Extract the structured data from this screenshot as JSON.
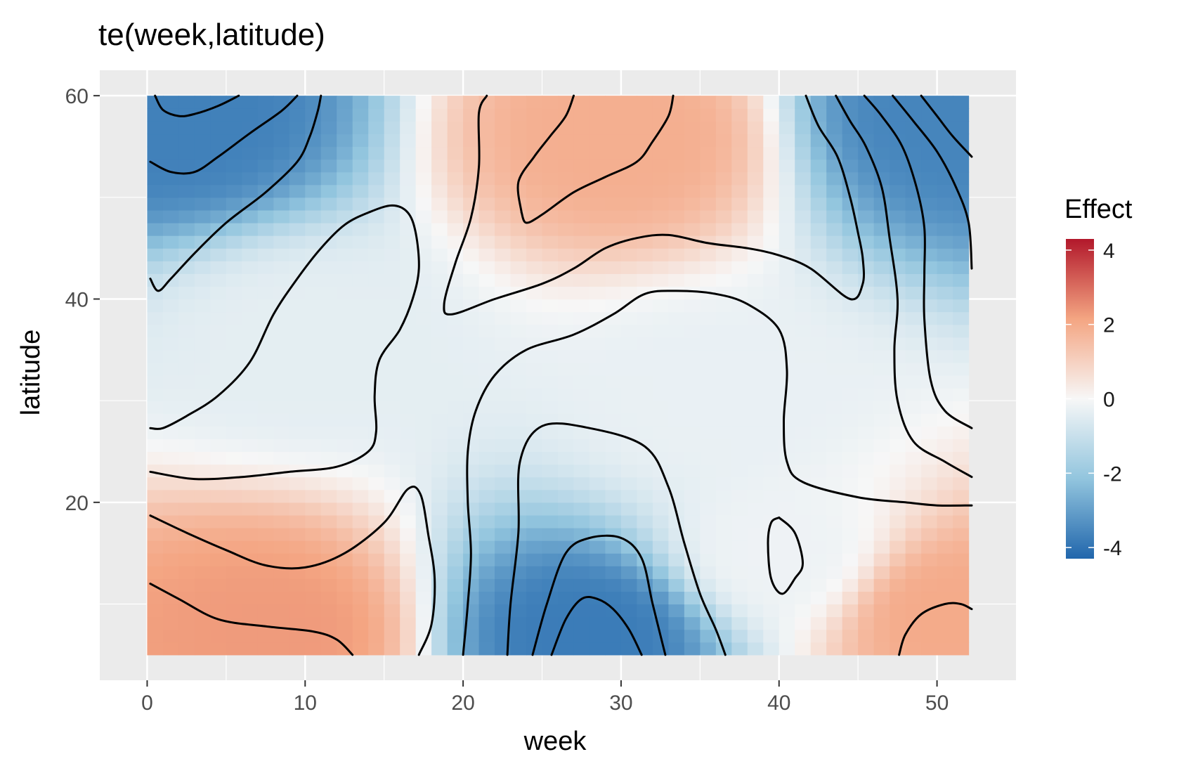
{
  "chart_data": {
    "type": "heatmap",
    "title": "te(week,latitude)",
    "xlabel": "week",
    "ylabel": "latitude",
    "xlim": [
      -3,
      55
    ],
    "ylim": [
      2.5,
      62.5
    ],
    "x_range": [
      0,
      52
    ],
    "y_range": [
      5,
      60
    ],
    "x_ticks": [
      0,
      10,
      20,
      30,
      40,
      50
    ],
    "y_ticks": [
      20,
      40,
      60
    ],
    "grid": true,
    "legend": {
      "title": "Effect",
      "position": "right",
      "limits": [
        -4.3,
        4.3
      ],
      "ticks": [
        4,
        2,
        0,
        -2,
        -4
      ],
      "tick_labels": [
        "4",
        "2",
        "0",
        "-2",
        "-4"
      ]
    },
    "colors": {
      "low": "#2166ac",
      "mid_low": "#92c5de",
      "mid": "#f7f7f7",
      "mid_high": "#f4a582",
      "high": "#b2182b",
      "panel_background": "#ebebeb",
      "gridline": "#ffffff",
      "contour": "#000000"
    },
    "surface_samples": [
      {
        "week": 2,
        "latitude": 58,
        "effect": -3.7
      },
      {
        "week": 51,
        "latitude": 58,
        "effect": -3.6
      },
      {
        "week": 28,
        "latitude": 7,
        "effect": -3.8
      },
      {
        "week": 30,
        "latitude": 56,
        "effect": 1.9
      },
      {
        "week": 8,
        "latitude": 7,
        "effect": 2.3
      },
      {
        "week": 51,
        "latitude": 9,
        "effect": 2.0
      },
      {
        "week": 10,
        "latitude": 36,
        "effect": -0.4
      },
      {
        "week": 36,
        "latitude": 30,
        "effect": -0.3
      },
      {
        "week": 40,
        "latitude": 15,
        "effect": -0.2
      }
    ],
    "contours": [
      {
        "points": [
          [
            0.5,
            60
          ],
          [
            1,
            58.6
          ],
          [
            2,
            58
          ],
          [
            3,
            58.2
          ],
          [
            4.5,
            59
          ],
          [
            5.8,
            60
          ]
        ]
      },
      {
        "points": [
          [
            0.2,
            53.5
          ],
          [
            1.5,
            52.5
          ],
          [
            3,
            52.5
          ],
          [
            4.5,
            54
          ],
          [
            6.5,
            56.3
          ],
          [
            8.5,
            58.5
          ],
          [
            9.5,
            60
          ]
        ]
      },
      {
        "points": [
          [
            0.2,
            42
          ],
          [
            0.7,
            40.8
          ],
          [
            1.5,
            42
          ],
          [
            3,
            44.5
          ],
          [
            5,
            47.5
          ],
          [
            7.5,
            50.5
          ],
          [
            9.5,
            53.5
          ],
          [
            10.3,
            56
          ],
          [
            10.8,
            58.5
          ],
          [
            11,
            60
          ]
        ]
      },
      {
        "points": [
          [
            0.2,
            27.3
          ],
          [
            1,
            27.3
          ],
          [
            2.5,
            28.5
          ],
          [
            4.5,
            30.5
          ],
          [
            6.5,
            33.8
          ],
          [
            8,
            38.5
          ],
          [
            9.5,
            42
          ],
          [
            11,
            45
          ],
          [
            12.5,
            47.3
          ],
          [
            14,
            48.5
          ],
          [
            15.5,
            49.2
          ],
          [
            16.5,
            48.5
          ],
          [
            17,
            46.5
          ],
          [
            17.2,
            43
          ],
          [
            16.8,
            40
          ],
          [
            16,
            37
          ],
          [
            14.7,
            34
          ],
          [
            14.4,
            30.5
          ],
          [
            14.5,
            27
          ],
          [
            14,
            25
          ],
          [
            12,
            23.5
          ],
          [
            9,
            23
          ],
          [
            6,
            22.5
          ],
          [
            3,
            22.3
          ],
          [
            0.2,
            23
          ]
        ]
      },
      {
        "points": [
          [
            0.2,
            18.7
          ],
          [
            2.5,
            17
          ],
          [
            5,
            15.3
          ],
          [
            7.5,
            13.8
          ],
          [
            10,
            13.6
          ],
          [
            12.5,
            15
          ],
          [
            15,
            18
          ],
          [
            16.5,
            21.3
          ],
          [
            17.3,
            20.8
          ],
          [
            17.8,
            16.8
          ],
          [
            18.2,
            12.5
          ],
          [
            18,
            8
          ],
          [
            17.2,
            5
          ]
        ]
      },
      {
        "points": [
          [
            0.2,
            12
          ],
          [
            2,
            10.5
          ],
          [
            4.5,
            8.5
          ],
          [
            7.5,
            7.8
          ],
          [
            10.5,
            7.3
          ],
          [
            12,
            6.5
          ],
          [
            13,
            5
          ]
        ]
      },
      {
        "points": [
          [
            20,
            5
          ],
          [
            20.3,
            10
          ],
          [
            20.5,
            15
          ],
          [
            20.3,
            20
          ],
          [
            20.3,
            25
          ],
          [
            20.8,
            29
          ],
          [
            22,
            32.5
          ],
          [
            24,
            35
          ],
          [
            27,
            36.5
          ],
          [
            29.5,
            38.5
          ],
          [
            31.5,
            40.5
          ],
          [
            33.5,
            40.8
          ],
          [
            36,
            40.5
          ],
          [
            38,
            39.5
          ],
          [
            40,
            37
          ],
          [
            40.5,
            33
          ],
          [
            40.3,
            28
          ],
          [
            40.5,
            24
          ],
          [
            41.5,
            22
          ],
          [
            45,
            20.5
          ],
          [
            48,
            20
          ],
          [
            50,
            19.7
          ],
          [
            52.2,
            19.7
          ]
        ]
      },
      {
        "points": [
          [
            47.6,
            5
          ],
          [
            48,
            7
          ],
          [
            49,
            9
          ],
          [
            50.5,
            10
          ],
          [
            51.5,
            10
          ],
          [
            52.2,
            9.5
          ]
        ]
      },
      {
        "points": [
          [
            40,
            18.5
          ],
          [
            41,
            17
          ],
          [
            41.5,
            14
          ],
          [
            41,
            12.5
          ],
          [
            40.2,
            11
          ],
          [
            39.5,
            12.5
          ],
          [
            39.3,
            16
          ],
          [
            39.5,
            18
          ],
          [
            40,
            18.5
          ]
        ]
      },
      {
        "points": [
          [
            22.8,
            5
          ],
          [
            23,
            10
          ],
          [
            23.5,
            17
          ],
          [
            23.6,
            24
          ],
          [
            25,
            27.5
          ],
          [
            28,
            27.3
          ],
          [
            31.5,
            25.5
          ],
          [
            33,
            21.5
          ],
          [
            34,
            16
          ],
          [
            35,
            11
          ],
          [
            36,
            7.5
          ],
          [
            36.6,
            5
          ]
        ]
      },
      {
        "points": [
          [
            24.4,
            5
          ],
          [
            25.3,
            10
          ],
          [
            26.5,
            15
          ],
          [
            28,
            16.5
          ],
          [
            30,
            16.5
          ],
          [
            31.3,
            14.5
          ],
          [
            32,
            10
          ],
          [
            32.8,
            5
          ]
        ]
      },
      {
        "points": [
          [
            25.6,
            5
          ],
          [
            26.5,
            8.5
          ],
          [
            27.5,
            10.5
          ],
          [
            28.5,
            10.5
          ],
          [
            29.5,
            9.5
          ],
          [
            30.5,
            7.5
          ],
          [
            31.3,
            5
          ]
        ]
      },
      {
        "points": [
          [
            21.5,
            60
          ],
          [
            21,
            58.3
          ],
          [
            21,
            53
          ],
          [
            20.5,
            48
          ],
          [
            19.5,
            43.5
          ],
          [
            18.8,
            39.5
          ],
          [
            19.3,
            38.5
          ],
          [
            22,
            40
          ],
          [
            25,
            41.5
          ],
          [
            27,
            43
          ],
          [
            29,
            45
          ],
          [
            31,
            46
          ],
          [
            33,
            46.3
          ],
          [
            35.5,
            45.5
          ],
          [
            38,
            45
          ],
          [
            40,
            44.3
          ],
          [
            42,
            43
          ],
          [
            44.5,
            40
          ],
          [
            45.3,
            41.5
          ],
          [
            45.3,
            44
          ],
          [
            45,
            46.5
          ],
          [
            44.5,
            50
          ],
          [
            43.7,
            54
          ],
          [
            42.5,
            57
          ],
          [
            41.7,
            60
          ]
        ]
      },
      {
        "points": [
          [
            23.7,
            48.5
          ],
          [
            24,
            47.5
          ],
          [
            25,
            48.3
          ],
          [
            27,
            50.5
          ],
          [
            29,
            52
          ],
          [
            31,
            53.5
          ],
          [
            32,
            55.5
          ],
          [
            33,
            58
          ],
          [
            33.3,
            60
          ]
        ]
      },
      {
        "points": [
          [
            23.7,
            48.5
          ],
          [
            23.5,
            51.5
          ],
          [
            24.5,
            54
          ],
          [
            25.5,
            56
          ],
          [
            26.5,
            58
          ],
          [
            27,
            60
          ]
        ]
      },
      {
        "points": [
          [
            43.6,
            60
          ],
          [
            44.5,
            57.5
          ],
          [
            45.5,
            55
          ],
          [
            46.5,
            51
          ],
          [
            47,
            46
          ],
          [
            47.5,
            40
          ],
          [
            47.3,
            35
          ],
          [
            47.5,
            30
          ],
          [
            48.5,
            26
          ],
          [
            50.5,
            24
          ],
          [
            52.2,
            22.5
          ]
        ]
      },
      {
        "points": [
          [
            45.4,
            60
          ],
          [
            46.5,
            58
          ],
          [
            47.8,
            55
          ],
          [
            48.7,
            51
          ],
          [
            49.2,
            47
          ],
          [
            49.2,
            42.5
          ],
          [
            49.2,
            38
          ],
          [
            49.6,
            32
          ],
          [
            50.5,
            29
          ],
          [
            52.2,
            27.3
          ]
        ]
      },
      {
        "points": [
          [
            47.2,
            60
          ],
          [
            48.5,
            57.5
          ],
          [
            50,
            54.5
          ],
          [
            51.2,
            51
          ],
          [
            52,
            47.5
          ],
          [
            52.2,
            43
          ]
        ]
      },
      {
        "points": [
          [
            49,
            60
          ],
          [
            50,
            58
          ],
          [
            51,
            56
          ],
          [
            52.2,
            54
          ]
        ]
      }
    ]
  }
}
